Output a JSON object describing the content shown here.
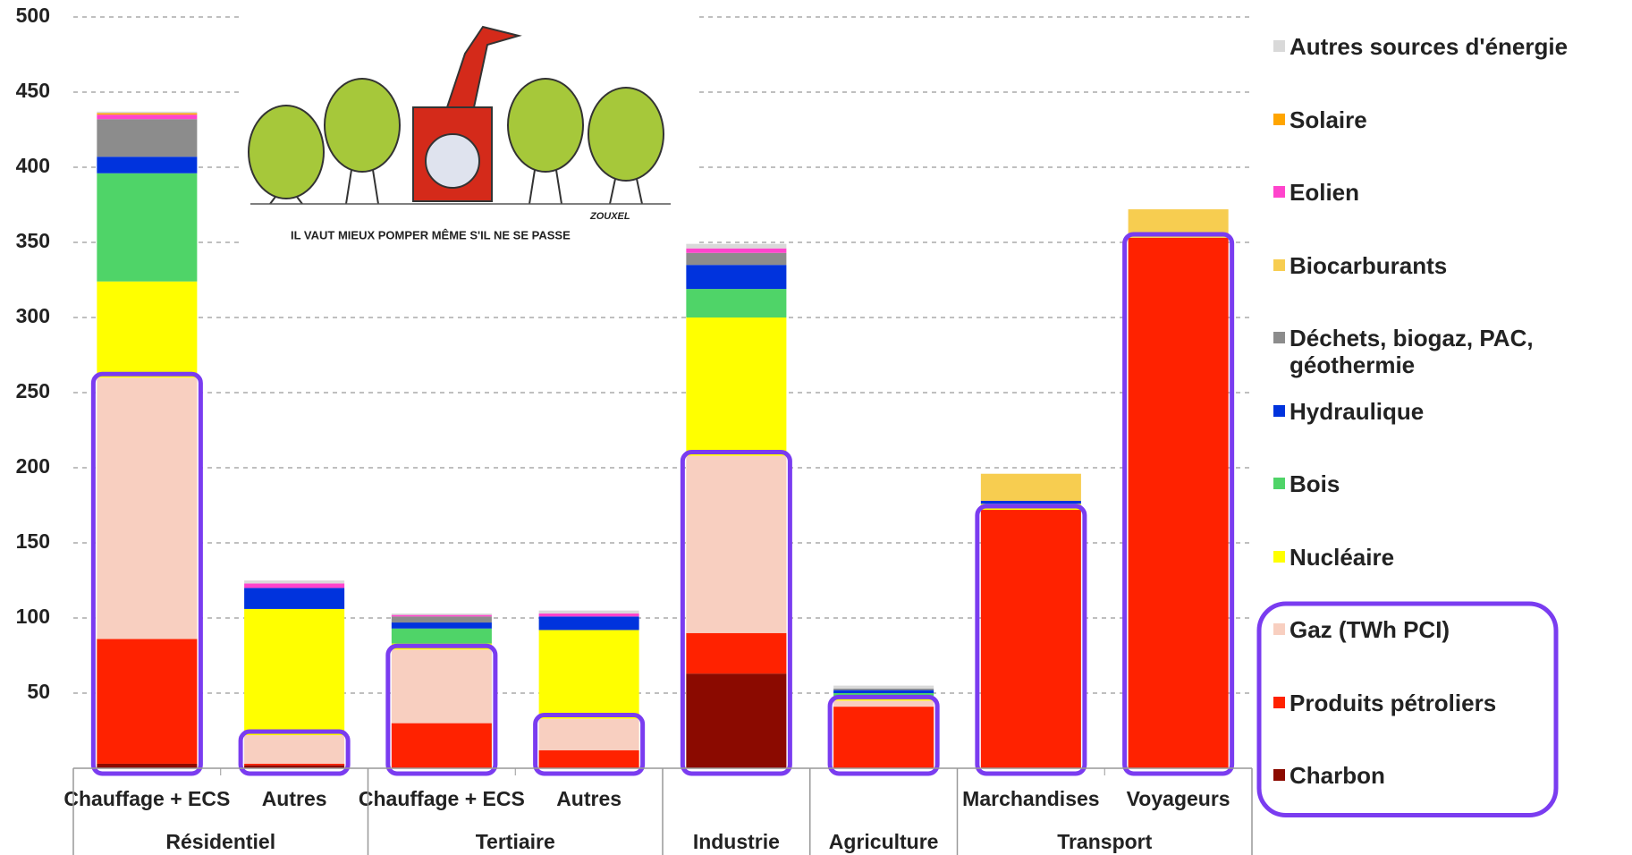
{
  "chart_data": {
    "type": "stacked_bar",
    "categories": [
      "Chauffage + ECS",
      "Autres",
      "Chauffage + ECS",
      "Autres",
      null,
      null,
      "Marchandises",
      "Voyageurs"
    ],
    "groups": [
      {
        "label": "Résidentiel",
        "size": 2
      },
      {
        "label": "Tertiaire",
        "size": 2
      },
      {
        "label": "Industrie",
        "size": 1
      },
      {
        "label": "Agriculture",
        "size": 1
      },
      {
        "label": "Transport",
        "size": 2
      }
    ],
    "series": [
      {
        "name": "Charbon",
        "color": "#8b0a00",
        "values": [
          3,
          2,
          0,
          0,
          63,
          0,
          0,
          0
        ]
      },
      {
        "name": "Produits pétroliers",
        "color": "#ff2200",
        "values": [
          83,
          1,
          30,
          12,
          27,
          41,
          172,
          353
        ]
      },
      {
        "name": "Gaz (TWh PCI)",
        "color": "#f8cfc0",
        "values": [
          174,
          19,
          49,
          21,
          118,
          4,
          0,
          0
        ]
      },
      {
        "name": "Nucléaire",
        "color": "#ffff00",
        "values": [
          64,
          84,
          4,
          59,
          92,
          3,
          4,
          0
        ]
      },
      {
        "name": "Bois",
        "color": "#4fd468",
        "values": [
          72,
          0,
          10,
          0,
          19,
          2,
          0,
          0
        ]
      },
      {
        "name": "Hydraulique",
        "color": "#0033dd",
        "values": [
          11,
          14,
          4,
          9,
          16,
          2,
          2,
          0
        ]
      },
      {
        "name": "Déchets, biogaz, PAC, géothermie",
        "color": "#8c8c8c",
        "values": [
          25,
          0,
          4,
          0,
          8,
          1,
          0,
          0
        ]
      },
      {
        "name": "Biocarburants",
        "color": "#f7cd50",
        "values": [
          0,
          0,
          0,
          0,
          0,
          0,
          18,
          19
        ]
      },
      {
        "name": "Eolien",
        "color": "#ff44cc",
        "values": [
          3,
          3,
          1,
          2,
          3,
          0,
          0,
          0
        ]
      },
      {
        "name": "Solaire",
        "color": "#ffa500",
        "values": [
          1,
          0,
          0,
          0,
          0,
          0,
          0,
          0
        ]
      },
      {
        "name": "Autres sources d'énergie",
        "color": "#d9d9d9",
        "values": [
          1,
          2,
          1,
          2,
          3,
          2,
          0,
          0
        ]
      }
    ],
    "highlighted_series": 3,
    "highlight_color": "#7a3cf0",
    "ylim": [
      0,
      500
    ],
    "yticks": [
      50,
      100,
      150,
      200,
      250,
      300,
      350,
      400,
      450,
      500
    ],
    "grid": true,
    "cartoon": {
      "caption": "IL VAUT MIEUX POMPER MÊME S'IL NE SE PASSE",
      "signature": "ZOUXEL"
    }
  }
}
